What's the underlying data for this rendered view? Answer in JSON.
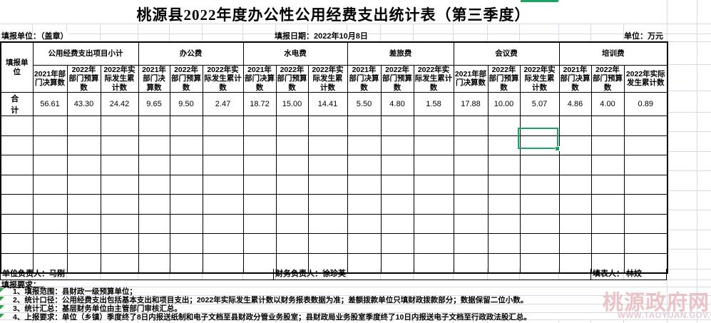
{
  "title": "桃源县2022年度办公性公用经费支出统计表（第三季度）",
  "meta": {
    "unit_label": "填报单位：（盖章）",
    "date_label": "填报日期：2022年10月8日",
    "money_unit": "单位：万元"
  },
  "table": {
    "corner_header": "填报单位",
    "sub_headers": [
      "2021年部门决算数",
      "2022年部门预算数",
      "2022年实际发生累计数"
    ],
    "groups": [
      {
        "label": "公用经费支出项目小计",
        "values": [
          "56.61",
          "43.30",
          "24.42"
        ]
      },
      {
        "label": "办公费",
        "values": [
          "9.65",
          "9.50",
          "2.47"
        ]
      },
      {
        "label": "水电费",
        "values": [
          "18.72",
          "15.00",
          "14.41"
        ]
      },
      {
        "label": "差旅费",
        "values": [
          "5.50",
          "4.80",
          "1.58"
        ]
      },
      {
        "label": "会议费",
        "values": [
          "17.88",
          "10.00",
          "5.07"
        ]
      },
      {
        "label": "培训费",
        "values": [
          "4.86",
          "4.00",
          "0.89"
        ]
      }
    ],
    "total_row_label": "合　计",
    "empty_row_count": 8
  },
  "footer": {
    "unit_head": "单位负责人：马刚",
    "finance_head": "财务负责人：徐珍英",
    "preparer_label": "填表人：",
    "preparer": "林姣",
    "requirements_title": "填报要求：",
    "requirements": [
      "1、填报范围：县财政一级预算单位；",
      "2、统计口径：公用经费支出包括基本支出和项目支出；2022年实际发生累计数以财务报表数据为准；差额拨款单位只填财政拨款部分；数据保留二位小数。",
      "3、统计汇总：基层财务单位由主管部门审核汇总。",
      "4、上报要求：单位（乡镇）季度终了8日内报送纸制和电子文档至县财政分管业务股室；县财政局业务股室季度终了10日内报送电子文档至行政政法股汇总。"
    ]
  },
  "watermark": {
    "text": "桃源政府网",
    "url": "WWW.TAOYUAN.GOV.CN"
  },
  "colors": {
    "selection_green": "#1ba466",
    "gridline": "#d7dae6",
    "watermark_pink": "#e9b9bb",
    "watermark_url_pink": "#e2c4ce"
  }
}
